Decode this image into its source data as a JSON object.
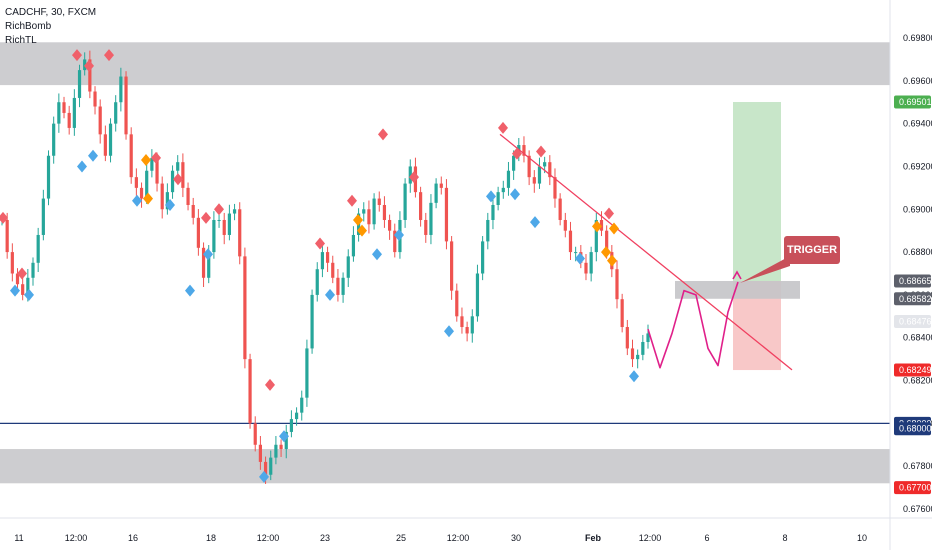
{
  "header": {
    "symbol_line": "CADCHF, 30, FXCM",
    "indicator1": "RichBomb",
    "indicator2": "RichTL"
  },
  "annotation": {
    "trigger_label": "TRIGGER"
  },
  "colors": {
    "up": "#26a69a",
    "down": "#ef5350",
    "diamond_red": "#f0606a",
    "diamond_blue": "#4ea8e8",
    "diamond_orange": "#ff9800",
    "zone_gray": "#c4c4c8",
    "target_green": "#c8e6c9",
    "stop_red": "#f8c8c8",
    "projection": "#e0208a",
    "trendline": "#f04060",
    "level_line": "#1f3a7a"
  },
  "chart_data": {
    "type": "candlestick",
    "symbol": "CADCHF",
    "timeframe": "30",
    "source": "FXCM",
    "y_axis_ticks": [
      "0.69800",
      "0.69600",
      "0.69400",
      "0.69200",
      "0.69000",
      "0.68800",
      "0.68600",
      "0.68400",
      "0.68200",
      "0.68000",
      "0.67800",
      "0.67600"
    ],
    "x_axis_ticks": [
      "11",
      "12:00",
      "16",
      "18",
      "12:00",
      "23",
      "25",
      "12:00",
      "30",
      "Feb",
      "12:00",
      "6",
      "8",
      "10"
    ],
    "price_tags": [
      {
        "label": "0.69501",
        "color": "#4caf50",
        "value": 0.69501
      },
      {
        "label": "0.68665",
        "color": "#5d606b",
        "value": 0.68665
      },
      {
        "label": "0.68582",
        "color": "#5d606b",
        "value": 0.68582
      },
      {
        "label": "0.68476",
        "color": "#e3e5ea",
        "text_color": "#131722",
        "value": 0.68476
      },
      {
        "label": "0.68249",
        "color": "#ef2a2a",
        "value": 0.68249
      },
      {
        "label": "0.68000",
        "color": "#1f3a7a",
        "value": 0.68
      },
      {
        "label": "0.68000",
        "color": "#1f3a7a",
        "value": 0.67975
      },
      {
        "label": "0.67700",
        "color": "#ef2a2a",
        "value": 0.677
      }
    ],
    "zones": [
      {
        "name": "resistance-zone",
        "from": 0.6958,
        "to": 0.6978
      },
      {
        "name": "support-zone",
        "from": 0.6772,
        "to": 0.6788
      }
    ],
    "horizontal_level": 0.68,
    "close_series": [
      0.6895,
      0.688,
      0.687,
      0.6865,
      0.686,
      0.6868,
      0.6875,
      0.6888,
      0.6905,
      0.6925,
      0.694,
      0.695,
      0.6945,
      0.6938,
      0.6952,
      0.6965,
      0.697,
      0.6955,
      0.6948,
      0.6935,
      0.6925,
      0.694,
      0.695,
      0.6962,
      0.6935,
      0.6915,
      0.691,
      0.6905,
      0.6918,
      0.6924,
      0.6912,
      0.69,
      0.6908,
      0.6918,
      0.6922,
      0.691,
      0.6902,
      0.6896,
      0.6882,
      0.6868,
      0.688,
      0.6895,
      0.6895,
      0.6888,
      0.6898,
      0.69,
      0.6878,
      0.683,
      0.68,
      0.679,
      0.6782,
      0.6776,
      0.6784,
      0.679,
      0.6788,
      0.6796,
      0.6802,
      0.6805,
      0.6812,
      0.6835,
      0.686,
      0.6872,
      0.688,
      0.6875,
      0.6868,
      0.686,
      0.6868,
      0.6878,
      0.6888,
      0.6898,
      0.69,
      0.6893,
      0.6905,
      0.6902,
      0.6895,
      0.689,
      0.688,
      0.6895,
      0.6912,
      0.692,
      0.6908,
      0.6895,
      0.6888,
      0.6903,
      0.6912,
      0.691,
      0.6885,
      0.6862,
      0.685,
      0.6845,
      0.6842,
      0.685,
      0.687,
      0.6885,
      0.6895,
      0.6902,
      0.6908,
      0.691,
      0.6918,
      0.6925,
      0.693,
      0.6925,
      0.6915,
      0.6912,
      0.692,
      0.6922,
      0.6915,
      0.6905,
      0.6895,
      0.689,
      0.688,
      0.688,
      0.6875,
      0.687,
      0.688,
      0.6895,
      0.689,
      0.688,
      0.6872,
      0.6858,
      0.6845,
      0.6835,
      0.683,
      0.6832,
      0.6838,
      0.6842
    ],
    "projection_path": [
      0.6844,
      0.6826,
      0.6842,
      0.6862,
      0.686,
      0.6835,
      0.6827,
      0.6852,
      0.6866
    ],
    "trendline": {
      "from_value": 0.6935,
      "to_value": 0.6825
    },
    "trade_box": {
      "target": 0.69501,
      "entry": 0.68665,
      "stop": 0.68249
    },
    "trigger_zone": {
      "from": 0.68582,
      "to": 0.68665
    }
  }
}
